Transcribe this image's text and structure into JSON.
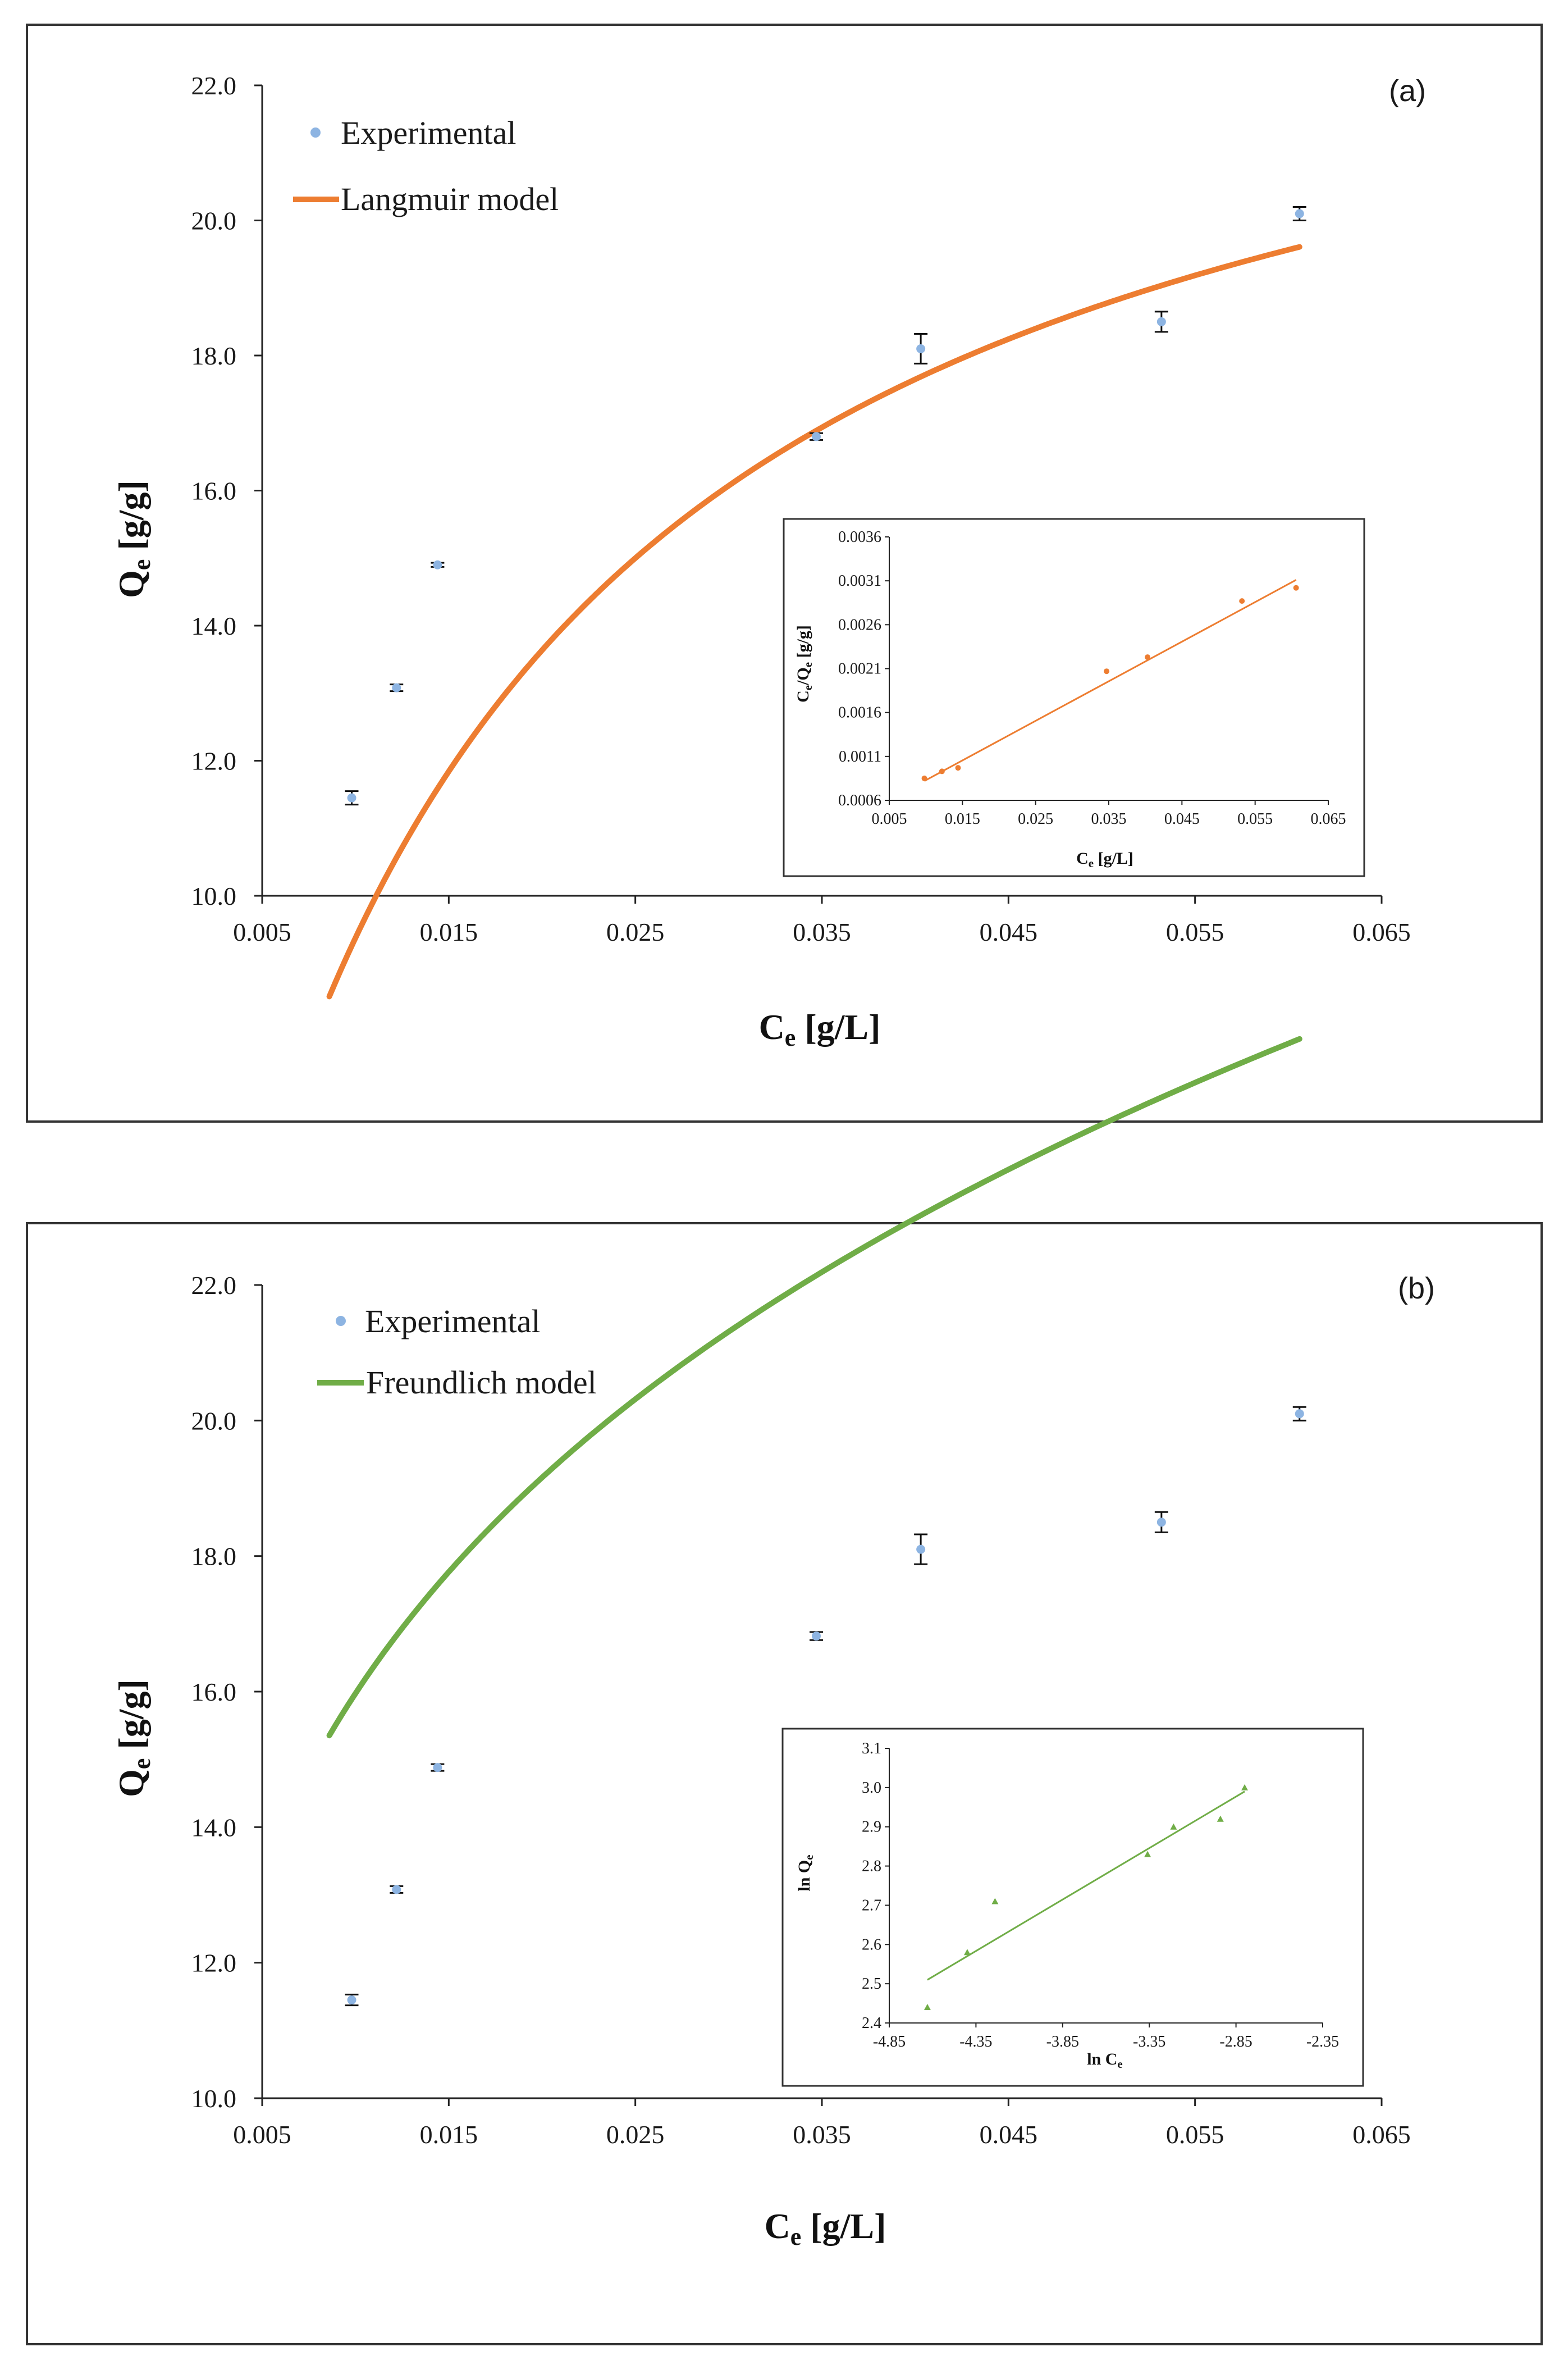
{
  "chart_data": [
    {
      "type": "scatter",
      "panel_label": "(a)",
      "xlim": [
        0.005,
        0.065
      ],
      "ylim": [
        10.0,
        22.0
      ],
      "x_ticks": [
        "0.005",
        "0.015",
        "0.025",
        "0.035",
        "0.045",
        "0.055",
        "0.065"
      ],
      "y_ticks": [
        "10.0",
        "12.0",
        "14.0",
        "16.0",
        "18.0",
        "20.0",
        "22.0"
      ],
      "xlabel": "C",
      "xlabel_sub": "e",
      "xlabel_unit": " [g/L]",
      "ylabel": "Q",
      "ylabel_sub": "e",
      "ylabel_unit": " [g/g]",
      "legend": [
        "Experimental",
        "Langmuir model"
      ],
      "legend_position": "top-left",
      "experimental": {
        "name": "Experimental",
        "color": "#8db4e2",
        "points": [
          {
            "x": 0.0098,
            "y": 11.45,
            "err": 0.1
          },
          {
            "x": 0.0122,
            "y": 13.08,
            "err": 0.05
          },
          {
            "x": 0.0144,
            "y": 14.9,
            "err": 0.03
          },
          {
            "x": 0.0347,
            "y": 16.8,
            "err": 0.05
          },
          {
            "x": 0.0403,
            "y": 18.1,
            "err": 0.22
          },
          {
            "x": 0.0532,
            "y": 18.5,
            "err": 0.15
          },
          {
            "x": 0.0606,
            "y": 20.1,
            "err": 0.1
          }
        ]
      },
      "model": {
        "name": "Langmuir model",
        "color": "#ed7d31",
        "form": "langmuir",
        "qmax": 25.0,
        "K": 60.0,
        "x_range": [
          0.0086,
          0.0606
        ]
      },
      "inset": {
        "xlim": [
          0.005,
          0.065
        ],
        "ylim": [
          0.0006,
          0.0036
        ],
        "x_ticks": [
          "0.005",
          "0.015",
          "0.025",
          "0.035",
          "0.045",
          "0.055",
          "0.065"
        ],
        "y_ticks": [
          "0.0006",
          "0.0011",
          "0.0016",
          "0.0021",
          "0.0026",
          "0.0031",
          "0.0036"
        ],
        "xlabel": "C",
        "xlabel_sub": "e",
        "xlabel_unit": " [g/L]",
        "ylabel": "C",
        "ylabel_sub": "e",
        "ylabel_mid": "/Q",
        "ylabel_sub2": "e",
        "ylabel_unit": " [g/g]",
        "color": "#ed7d31",
        "points": [
          {
            "x": 0.0098,
            "y": 0.00085
          },
          {
            "x": 0.0122,
            "y": 0.00093
          },
          {
            "x": 0.0144,
            "y": 0.00097
          },
          {
            "x": 0.0347,
            "y": 0.00207
          },
          {
            "x": 0.0403,
            "y": 0.00223
          },
          {
            "x": 0.0532,
            "y": 0.00287
          },
          {
            "x": 0.0606,
            "y": 0.00302
          }
        ],
        "fit": {
          "x1": 0.0098,
          "y1": 0.00082,
          "x2": 0.0606,
          "y2": 0.00311
        }
      }
    },
    {
      "type": "scatter",
      "panel_label": "(b)",
      "xlim": [
        0.005,
        0.065
      ],
      "ylim": [
        10.0,
        22.0
      ],
      "x_ticks": [
        "0.005",
        "0.015",
        "0.025",
        "0.035",
        "0.045",
        "0.055",
        "0.065"
      ],
      "y_ticks": [
        "10.0",
        "12.0",
        "14.0",
        "16.0",
        "18.0",
        "20.0",
        "22.0"
      ],
      "xlabel": "C",
      "xlabel_sub": "e",
      "xlabel_unit": " [g/L]",
      "ylabel": "Q",
      "ylabel_sub": "e",
      "ylabel_unit": " [g/g]",
      "legend": [
        "Experimental",
        "Freundlich model"
      ],
      "legend_position": "top-left",
      "experimental": {
        "name": "Experimental",
        "color": "#8db4e2",
        "points": [
          {
            "x": 0.0098,
            "y": 11.45,
            "err": 0.08
          },
          {
            "x": 0.0122,
            "y": 13.08,
            "err": 0.05
          },
          {
            "x": 0.0144,
            "y": 14.88,
            "err": 0.05
          },
          {
            "x": 0.0347,
            "y": 16.82,
            "err": 0.06
          },
          {
            "x": 0.0403,
            "y": 18.1,
            "err": 0.22
          },
          {
            "x": 0.0532,
            "y": 18.5,
            "err": 0.15
          },
          {
            "x": 0.0606,
            "y": 20.1,
            "err": 0.1
          }
        ]
      },
      "model": {
        "name": "Freundlich model",
        "color": "#70ad47",
        "form": "freundlich",
        "Kf": 53.5,
        "n": 0.2625,
        "x_range": [
          0.0086,
          0.0606
        ]
      },
      "inset": {
        "xlim": [
          -4.85,
          -2.35
        ],
        "ylim": [
          2.4,
          3.1
        ],
        "x_ticks": [
          "-4.85",
          "-4.35",
          "-3.85",
          "-3.35",
          "-2.85",
          "-2.35"
        ],
        "y_ticks": [
          "2.4",
          "2.5",
          "2.6",
          "2.7",
          "2.8",
          "2.9",
          "3.0",
          "3.1"
        ],
        "xlabel": "ln C",
        "xlabel_sub": "e",
        "ylabel": "ln Q",
        "ylabel_sub": "e",
        "color": "#70ad47",
        "points": [
          {
            "x": -4.63,
            "y": 2.44
          },
          {
            "x": -4.4,
            "y": 2.58
          },
          {
            "x": -4.24,
            "y": 2.71
          },
          {
            "x": -3.36,
            "y": 2.83
          },
          {
            "x": -3.21,
            "y": 2.9
          },
          {
            "x": -2.94,
            "y": 2.92
          },
          {
            "x": -2.8,
            "y": 3.0
          }
        ],
        "fit": {
          "x1": -4.63,
          "y1": 2.51,
          "x2": -2.8,
          "y2": 2.99
        }
      }
    }
  ]
}
